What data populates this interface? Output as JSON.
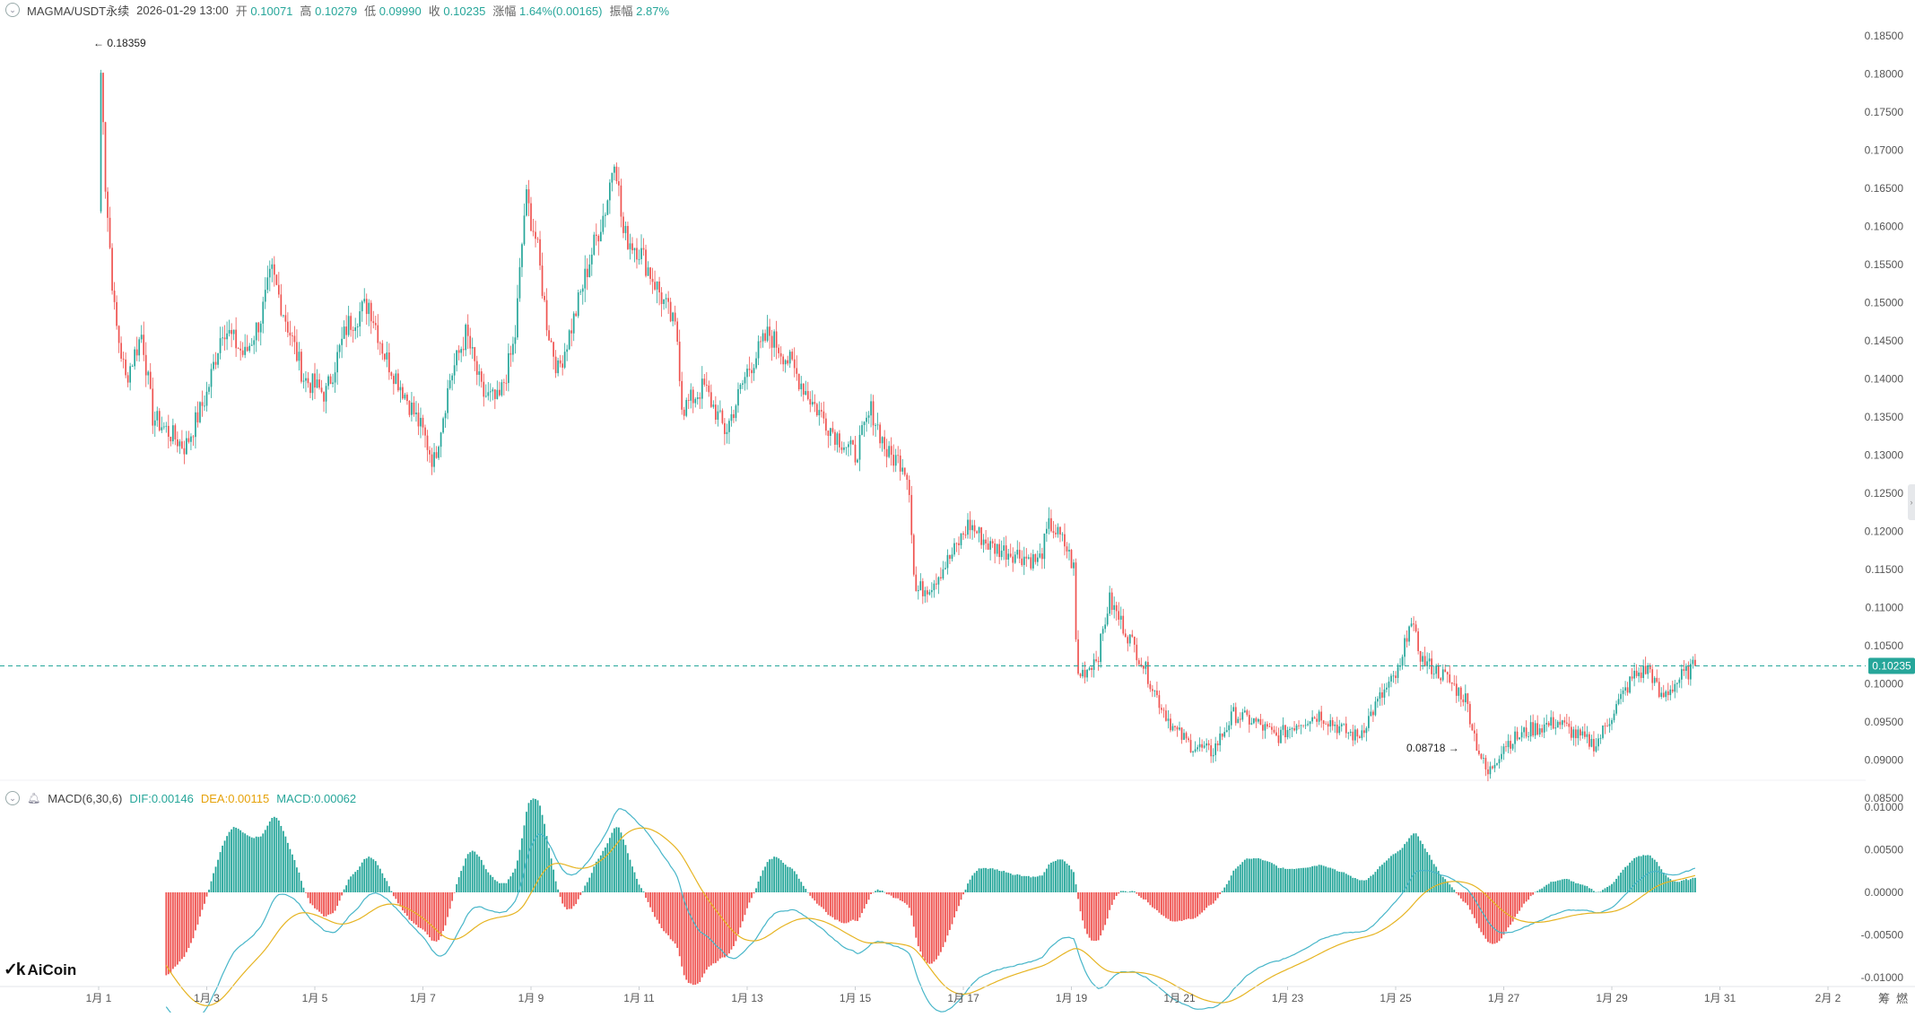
{
  "header": {
    "symbol": "MAGMA/USDT永续",
    "datetime": "2026-01-29 13:00",
    "open_label": "开",
    "open": "0.10071",
    "high_label": "高",
    "high": "0.10279",
    "low_label": "低",
    "low": "0.09990",
    "close_label": "收",
    "close": "0.10235",
    "change_label": "涨幅",
    "change": "1.64%(0.00165)",
    "amplitude_label": "振幅",
    "amplitude": "2.87%"
  },
  "macd_header": {
    "name": "MACD(6,30,6)",
    "dif_label": "DIF:",
    "dif": "0.00146",
    "dea_label": "DEA:",
    "dea": "0.00115",
    "macd_label": "MACD:",
    "macd": "0.00062"
  },
  "price_axis": {
    "ticks": [
      "0.18500",
      "0.18000",
      "0.17500",
      "0.17000",
      "0.16500",
      "0.16000",
      "0.15500",
      "0.15000",
      "0.14500",
      "0.14000",
      "0.13500",
      "0.13000",
      "0.12500",
      "0.12000",
      "0.11500",
      "0.11000",
      "0.10500",
      "0.10000",
      "0.09500",
      "0.09000",
      "0.08500"
    ],
    "current_price": "0.10235",
    "high_marker": "0.18359",
    "low_marker": "0.08718"
  },
  "macd_axis": {
    "ticks": [
      "0.01000",
      "0.00500",
      "0.00000",
      "-0.00500",
      "-0.01000"
    ]
  },
  "time_axis": {
    "ticks": [
      "1月 1",
      "1月 3",
      "1月 5",
      "1月 7",
      "1月 9",
      "1月 11",
      "1月 13",
      "1月 15",
      "1月 17",
      "1月 19",
      "1月 21",
      "1月 23",
      "1月 25",
      "1月 27",
      "1月 29",
      "1月 31",
      "2月 2"
    ]
  },
  "corner_labels": {
    "a": "筹",
    "b": "燃"
  },
  "logo": {
    "mark": "✓k",
    "text": "AiCoin"
  },
  "colors": {
    "up": "#26a69a",
    "down": "#ef5350",
    "dif": "#48b6c9",
    "dea": "#e6b422",
    "axis_text": "#555555",
    "price_tag": "#26a69a"
  },
  "chart_data": {
    "type": "candlestick",
    "interval": "1h",
    "ylim": [
      0.085,
      0.185
    ],
    "macd_ylim": [
      -0.0105,
      0.0105
    ],
    "price_path": [
      {
        "day": 0.0,
        "close": 0.162
      },
      {
        "day": 0.05,
        "close": 0.1835
      },
      {
        "day": 0.12,
        "close": 0.166
      },
      {
        "day": 0.3,
        "close": 0.148
      },
      {
        "day": 0.5,
        "close": 0.14
      },
      {
        "day": 0.8,
        "close": 0.146
      },
      {
        "day": 1.0,
        "close": 0.135
      },
      {
        "day": 1.3,
        "close": 0.133
      },
      {
        "day": 1.6,
        "close": 0.131
      },
      {
        "day": 2.0,
        "close": 0.138
      },
      {
        "day": 2.3,
        "close": 0.147
      },
      {
        "day": 2.7,
        "close": 0.143
      },
      {
        "day": 3.0,
        "close": 0.148
      },
      {
        "day": 3.2,
        "close": 0.154
      },
      {
        "day": 3.5,
        "close": 0.147
      },
      {
        "day": 3.8,
        "close": 0.14
      },
      {
        "day": 4.2,
        "close": 0.138
      },
      {
        "day": 4.6,
        "close": 0.147
      },
      {
        "day": 5.0,
        "close": 0.15
      },
      {
        "day": 5.3,
        "close": 0.143
      },
      {
        "day": 5.6,
        "close": 0.139
      },
      {
        "day": 6.0,
        "close": 0.133
      },
      {
        "day": 6.2,
        "close": 0.129
      },
      {
        "day": 6.5,
        "close": 0.14
      },
      {
        "day": 6.8,
        "close": 0.146
      },
      {
        "day": 7.1,
        "close": 0.138
      },
      {
        "day": 7.4,
        "close": 0.137
      },
      {
        "day": 7.7,
        "close": 0.145
      },
      {
        "day": 7.9,
        "close": 0.164
      },
      {
        "day": 8.1,
        "close": 0.158
      },
      {
        "day": 8.3,
        "close": 0.147
      },
      {
        "day": 8.5,
        "close": 0.141
      },
      {
        "day": 8.8,
        "close": 0.148
      },
      {
        "day": 9.1,
        "close": 0.156
      },
      {
        "day": 9.4,
        "close": 0.163
      },
      {
        "day": 9.55,
        "close": 0.17
      },
      {
        "day": 9.7,
        "close": 0.159
      },
      {
        "day": 10.0,
        "close": 0.157
      },
      {
        "day": 10.4,
        "close": 0.151
      },
      {
        "day": 10.7,
        "close": 0.146
      },
      {
        "day": 10.8,
        "close": 0.136
      },
      {
        "day": 11.2,
        "close": 0.139
      },
      {
        "day": 11.6,
        "close": 0.133
      },
      {
        "day": 12.0,
        "close": 0.141
      },
      {
        "day": 12.4,
        "close": 0.146
      },
      {
        "day": 12.8,
        "close": 0.142
      },
      {
        "day": 13.2,
        "close": 0.137
      },
      {
        "day": 13.6,
        "close": 0.133
      },
      {
        "day": 14.0,
        "close": 0.13
      },
      {
        "day": 14.3,
        "close": 0.136
      },
      {
        "day": 14.6,
        "close": 0.13
      },
      {
        "day": 14.9,
        "close": 0.129
      },
      {
        "day": 15.0,
        "close": 0.126
      },
      {
        "day": 15.1,
        "close": 0.112
      },
      {
        "day": 15.4,
        "close": 0.113
      },
      {
        "day": 15.8,
        "close": 0.117
      },
      {
        "day": 16.1,
        "close": 0.121
      },
      {
        "day": 16.5,
        "close": 0.118
      },
      {
        "day": 17.0,
        "close": 0.117
      },
      {
        "day": 17.4,
        "close": 0.116
      },
      {
        "day": 17.6,
        "close": 0.121
      },
      {
        "day": 17.9,
        "close": 0.118
      },
      {
        "day": 18.05,
        "close": 0.115
      },
      {
        "day": 18.1,
        "close": 0.101
      },
      {
        "day": 18.3,
        "close": 0.102
      },
      {
        "day": 18.5,
        "close": 0.104
      },
      {
        "day": 18.7,
        "close": 0.111
      },
      {
        "day": 19.0,
        "close": 0.107
      },
      {
        "day": 19.3,
        "close": 0.103
      },
      {
        "day": 19.6,
        "close": 0.098
      },
      {
        "day": 19.9,
        "close": 0.094
      },
      {
        "day": 20.2,
        "close": 0.092
      },
      {
        "day": 20.6,
        "close": 0.091
      },
      {
        "day": 21.0,
        "close": 0.096
      },
      {
        "day": 21.4,
        "close": 0.095
      },
      {
        "day": 21.8,
        "close": 0.093
      },
      {
        "day": 22.2,
        "close": 0.095
      },
      {
        "day": 22.6,
        "close": 0.096
      },
      {
        "day": 23.0,
        "close": 0.094
      },
      {
        "day": 23.3,
        "close": 0.093
      },
      {
        "day": 23.7,
        "close": 0.098
      },
      {
        "day": 24.1,
        "close": 0.102
      },
      {
        "day": 24.25,
        "close": 0.1085
      },
      {
        "day": 24.5,
        "close": 0.103
      },
      {
        "day": 24.9,
        "close": 0.101
      },
      {
        "day": 25.3,
        "close": 0.098
      },
      {
        "day": 25.5,
        "close": 0.092
      },
      {
        "day": 25.7,
        "close": 0.088
      },
      {
        "day": 26.0,
        "close": 0.092
      },
      {
        "day": 26.5,
        "close": 0.094
      },
      {
        "day": 27.0,
        "close": 0.095
      },
      {
        "day": 27.4,
        "close": 0.093
      },
      {
        "day": 27.7,
        "close": 0.092
      },
      {
        "day": 28.0,
        "close": 0.096
      },
      {
        "day": 28.4,
        "close": 0.101
      },
      {
        "day": 28.7,
        "close": 0.102
      },
      {
        "day": 28.9,
        "close": 0.098
      },
      {
        "day": 29.3,
        "close": 0.101
      },
      {
        "day": 29.55,
        "close": 0.10235
      }
    ]
  }
}
